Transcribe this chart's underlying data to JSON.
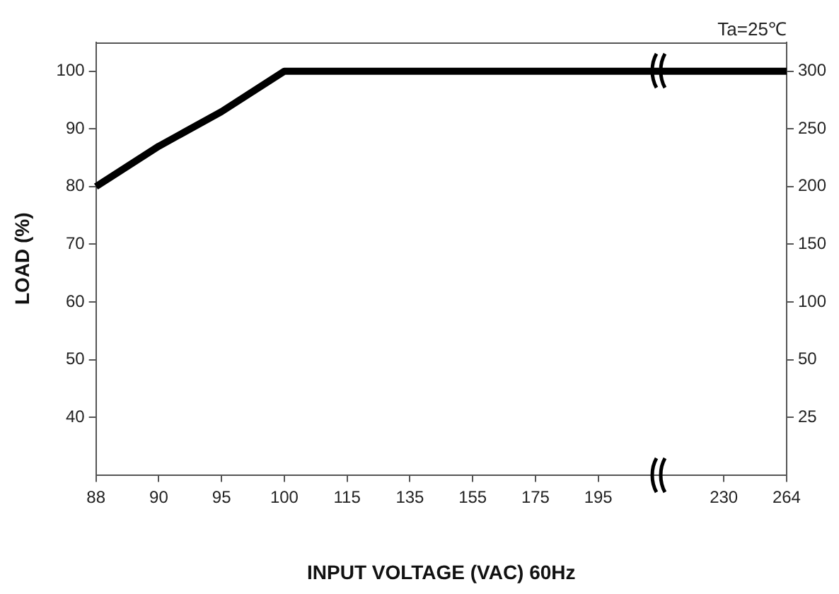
{
  "chart_data": {
    "type": "line",
    "ylabel": "LOAD (%)",
    "xlabel": "INPUT VOLTAGE (VAC) 60Hz",
    "annotations": [
      "Ta=25℃"
    ],
    "categories": [
      "88",
      "90",
      "95",
      "100",
      "115",
      "135",
      "155",
      "175",
      "195",
      null,
      "230",
      "264"
    ],
    "series": [
      {
        "color": "#000000",
        "values": [
          80,
          87,
          93,
          100,
          100,
          100,
          100,
          100,
          100,
          100,
          100,
          100
        ]
      }
    ],
    "ylim": [
      30,
      105
    ],
    "yticks": [
      40,
      50,
      60,
      70,
      80,
      90,
      100
    ],
    "y2_categories": [
      "300",
      "250",
      "200",
      "150",
      "100",
      "50",
      "25"
    ],
    "grid": false,
    "legend": false,
    "marker": "none",
    "line_style": "solid"
  }
}
